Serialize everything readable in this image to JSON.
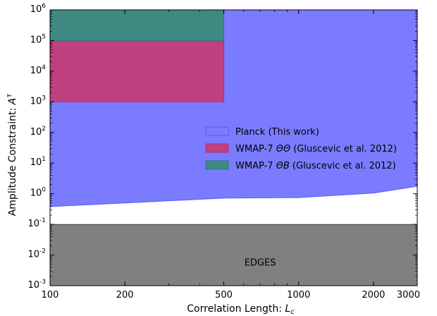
{
  "chart_data": {
    "type": "area",
    "xlabel": "Correlation Length: ",
    "xlabel_symbol": "L",
    "xlabel_sub": "c",
    "ylabel": "Amplitude Constraint: ",
    "ylabel_symbol": "A",
    "ylabel_sup": "τ",
    "xscale": "log",
    "yscale": "log",
    "xlim": [
      100,
      3000
    ],
    "ylim": [
      0.001,
      1000000
    ],
    "x_ticks": [
      {
        "value": 100,
        "label": "100"
      },
      {
        "value": 200,
        "label": "200"
      },
      {
        "value": 500,
        "label": "500"
      },
      {
        "value": 1000,
        "label": "1000"
      },
      {
        "value": 2000,
        "label": "2000"
      },
      {
        "value": 3000,
        "label": "3000"
      }
    ],
    "y_ticks": [
      {
        "value": 0.001,
        "base": "10",
        "exp": "-3"
      },
      {
        "value": 0.01,
        "base": "10",
        "exp": "-2"
      },
      {
        "value": 0.1,
        "base": "10",
        "exp": "-1"
      },
      {
        "value": 1,
        "base": "10",
        "exp": "0"
      },
      {
        "value": 10,
        "base": "10",
        "exp": "1"
      },
      {
        "value": 100,
        "base": "10",
        "exp": "2"
      },
      {
        "value": 1000,
        "base": "10",
        "exp": "3"
      },
      {
        "value": 10000,
        "base": "10",
        "exp": "4"
      },
      {
        "value": 100000,
        "base": "10",
        "exp": "5"
      },
      {
        "value": 1000000,
        "base": "10",
        "exp": "6"
      }
    ],
    "grid": false,
    "legend_position": "center-right",
    "series": [
      {
        "name": "Planck (This work)",
        "color": "#7b7bff",
        "edge": "#5a5aff",
        "x": [
          100,
          200,
          500,
          1000,
          2000,
          3000
        ],
        "lower": [
          0.38,
          0.5,
          0.72,
          0.75,
          1.05,
          1.75
        ],
        "upper": 1000000
      },
      {
        "name": "WMAP-7 ΘΘ (Gluscevic et al. 2012)",
        "name_prefix": "WMAP-7 ",
        "name_math": "ΘΘ",
        "name_suffix": " (Gluscevic et al. 2012)",
        "color": "#c0407f",
        "edge": "#b0306f",
        "x_range": [
          100,
          500
        ],
        "y_range": [
          1000,
          100000
        ]
      },
      {
        "name": "WMAP-7 ΘB (Gluscevic et al. 2012)",
        "name_prefix": "WMAP-7 ",
        "name_math": "ΘB",
        "name_suffix": " (Gluscevic et al. 2012)",
        "color": "#3e8a82",
        "edge": "#2f7a72",
        "x_range": [
          100,
          500
        ],
        "y_range": [
          100000,
          1000000
        ]
      }
    ],
    "edges_region": {
      "label": "EDGES",
      "color": "#808080",
      "y_range": [
        0.001,
        0.1
      ],
      "label_x": 700,
      "label_y": 0.0045
    }
  }
}
